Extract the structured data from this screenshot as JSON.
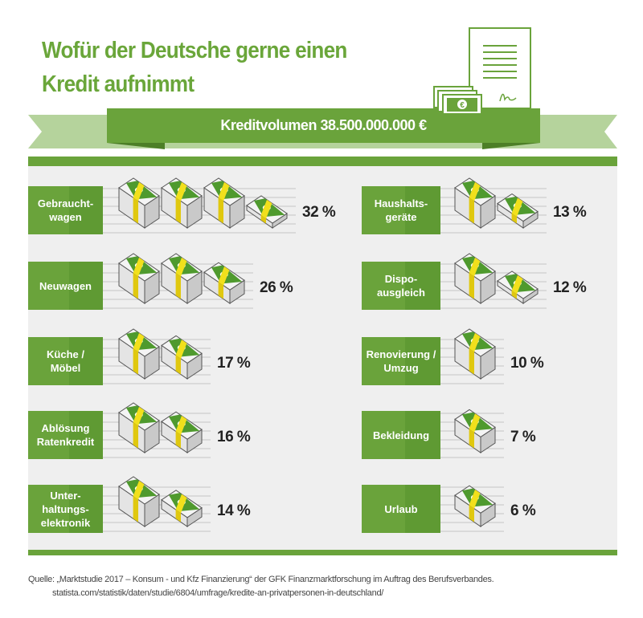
{
  "header": {
    "title_line1": "Wofür der Deutsche gerne einen",
    "title_line2": "Kredit aufnimmt",
    "volume": "Kreditvolumen 38.500.000.000 €",
    "icons": [
      "contract-document-icon",
      "euro-banknotes-icon"
    ]
  },
  "colors": {
    "green": "#6aa33b",
    "light_green": "#b5d39c",
    "panel": "#efefef",
    "yellow": "#f1e01c"
  },
  "chart_data": {
    "type": "bar",
    "style": "pictorial (money stacks, one full stack ≈ 10 %)",
    "title": "Wofür der Deutsche gerne einen Kredit aufnimmt",
    "unit": "%",
    "categories": [
      "Gebraucht-\nwagen",
      "Neuwagen",
      "Küche /\nMöbel",
      "Ablösung\nRatenkredit",
      "Unter-\nhaltungs-\nelektronik",
      "Haushalts-\ngeräte",
      "Dispo-\nausgleich",
      "Renovierung /\nUmzug",
      "Bekleidung",
      "Urlaub"
    ],
    "values": [
      32,
      26,
      17,
      16,
      14,
      13,
      12,
      10,
      7,
      6
    ],
    "labels": [
      "32 %",
      "26 %",
      "17 %",
      "16 %",
      "14 %",
      "13 %",
      "12 %",
      "10 %",
      "7 %",
      "6 %"
    ]
  },
  "footer": {
    "source": "Quelle: „Marktstudie 2017 – Konsum - und Kfz Finanzierung“ der GFK Finanzmarktforschung im Auftrag des Berufsverbandes.",
    "url": "statista.com/statistik/daten/studie/6804/umfrage/kredite-an-privatpersonen-in-deutschland/"
  }
}
